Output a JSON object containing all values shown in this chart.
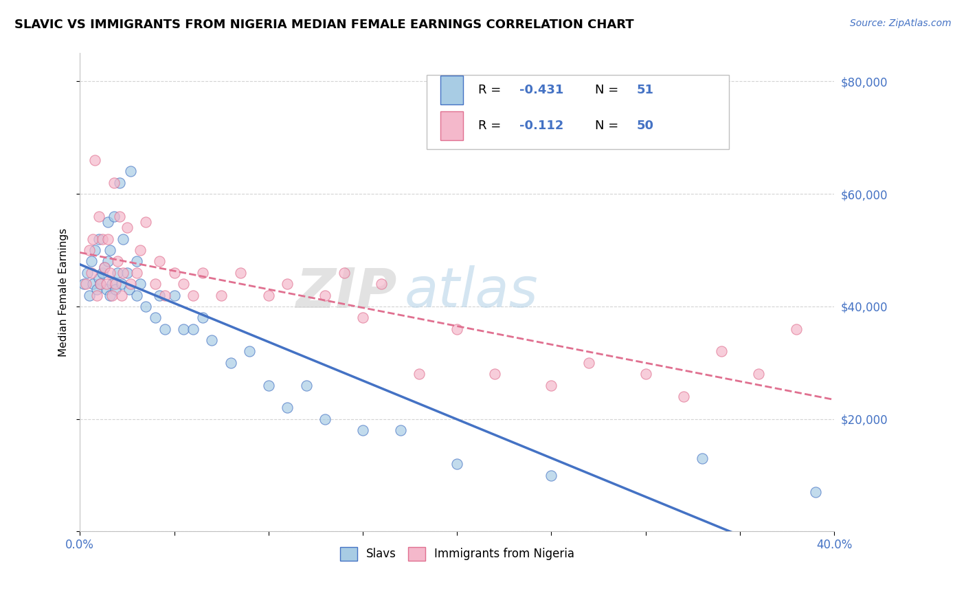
{
  "title": "SLAVIC VS IMMIGRANTS FROM NIGERIA MEDIAN FEMALE EARNINGS CORRELATION CHART",
  "source": "Source: ZipAtlas.com",
  "ylabel": "Median Female Earnings",
  "xlim": [
    0.0,
    0.4
  ],
  "ylim": [
    0,
    85000
  ],
  "yticks": [
    0,
    20000,
    40000,
    60000,
    80000
  ],
  "xtick_positions": [
    0.0,
    0.05,
    0.1,
    0.15,
    0.2,
    0.25,
    0.3,
    0.35,
    0.4
  ],
  "xtick_labels": [
    "0.0%",
    "",
    "",
    "",
    "",
    "",
    "",
    "",
    "40.0%"
  ],
  "color_slavs": "#a8cce4",
  "color_nigeria": "#f4b8cb",
  "color_slavs_line": "#4472c4",
  "color_nigeria_line": "#e07090",
  "slavs_x": [
    0.002,
    0.004,
    0.005,
    0.006,
    0.007,
    0.008,
    0.009,
    0.01,
    0.01,
    0.011,
    0.012,
    0.013,
    0.014,
    0.015,
    0.015,
    0.016,
    0.016,
    0.017,
    0.018,
    0.019,
    0.02,
    0.021,
    0.022,
    0.023,
    0.025,
    0.026,
    0.027,
    0.03,
    0.03,
    0.032,
    0.035,
    0.04,
    0.042,
    0.045,
    0.05,
    0.055,
    0.06,
    0.065,
    0.07,
    0.08,
    0.09,
    0.1,
    0.11,
    0.12,
    0.13,
    0.15,
    0.17,
    0.2,
    0.25,
    0.33,
    0.39
  ],
  "slavs_y": [
    44000,
    46000,
    42000,
    48000,
    44000,
    50000,
    43000,
    45000,
    52000,
    44000,
    46000,
    47000,
    43000,
    48000,
    55000,
    42000,
    50000,
    44000,
    56000,
    43000,
    46000,
    62000,
    44000,
    52000,
    46000,
    43000,
    64000,
    42000,
    48000,
    44000,
    40000,
    38000,
    42000,
    36000,
    42000,
    36000,
    36000,
    38000,
    34000,
    30000,
    32000,
    26000,
    22000,
    26000,
    20000,
    18000,
    18000,
    12000,
    10000,
    13000,
    7000
  ],
  "nigeria_x": [
    0.003,
    0.005,
    0.006,
    0.007,
    0.008,
    0.009,
    0.01,
    0.011,
    0.012,
    0.013,
    0.014,
    0.015,
    0.016,
    0.017,
    0.018,
    0.019,
    0.02,
    0.021,
    0.022,
    0.023,
    0.025,
    0.027,
    0.03,
    0.032,
    0.035,
    0.04,
    0.042,
    0.045,
    0.05,
    0.055,
    0.06,
    0.065,
    0.075,
    0.085,
    0.1,
    0.11,
    0.13,
    0.14,
    0.15,
    0.16,
    0.18,
    0.2,
    0.22,
    0.25,
    0.27,
    0.3,
    0.32,
    0.34,
    0.36,
    0.38
  ],
  "nigeria_y": [
    44000,
    50000,
    46000,
    52000,
    66000,
    42000,
    56000,
    44000,
    52000,
    47000,
    44000,
    52000,
    46000,
    42000,
    62000,
    44000,
    48000,
    56000,
    42000,
    46000,
    54000,
    44000,
    46000,
    50000,
    55000,
    44000,
    48000,
    42000,
    46000,
    44000,
    42000,
    46000,
    42000,
    46000,
    42000,
    44000,
    42000,
    46000,
    38000,
    44000,
    28000,
    36000,
    28000,
    26000,
    30000,
    28000,
    24000,
    32000,
    28000,
    36000
  ]
}
